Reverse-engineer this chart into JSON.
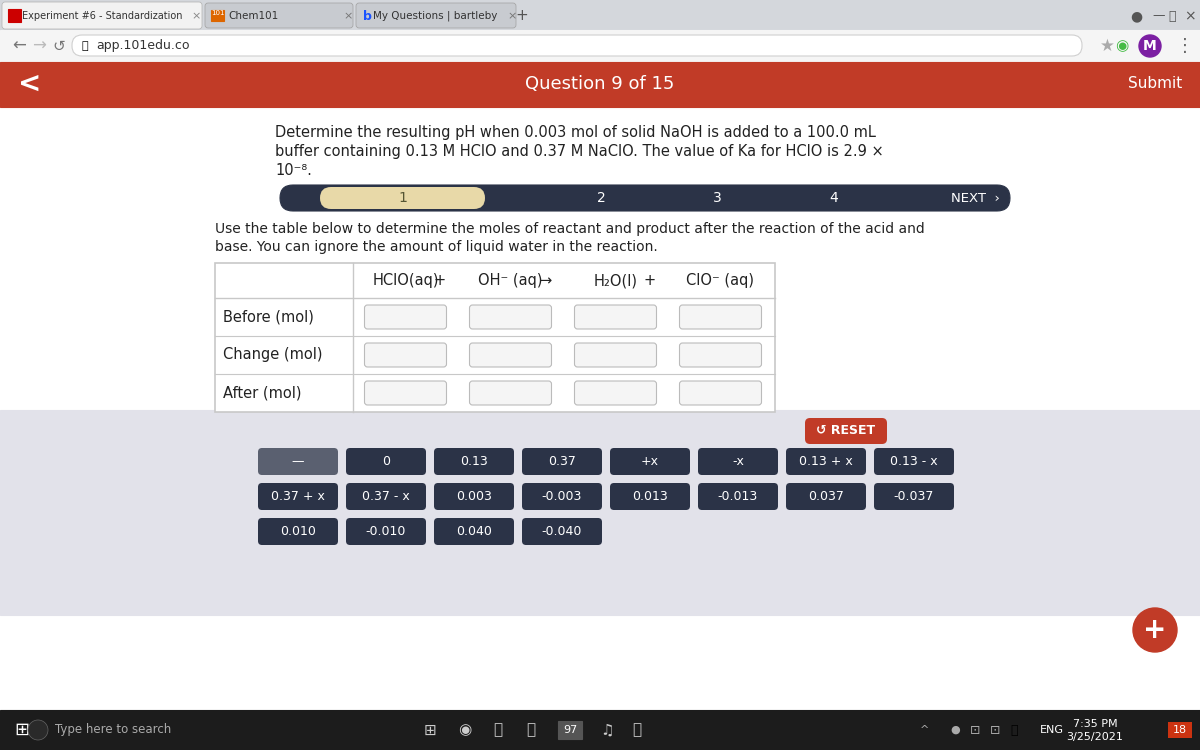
{
  "browser_bg": "#e8e8e8",
  "tab_bar_bg": "#d4d7dc",
  "tab_active_bg": "#f2f2f2",
  "tab_inactive_bg": "#c8cbd0",
  "tab1_text": "Experiment #6 - Standardization",
  "tab2_text": "Chem101",
  "tab3_text": "My Questions | bartleby",
  "address_bar_text": "app.101edu.co",
  "header_bg": "#c13b27",
  "header_text": "Question 9 of 15",
  "header_text_color": "#ffffff",
  "submit_text": "Submit",
  "nav_left": "<",
  "question_text_line1": "Determine the resulting pH when 0.003 mol of solid NaOH is added to a 100.0 mL",
  "question_text_line2": "buffer containing 0.13 M HClO and 0.37 M NaClO. The value of Ka for HClO is 2.9 ×",
  "question_text_line3": "10⁻⁸.",
  "progress_bg": "#2b3347",
  "progress_active_color": "#e8d9a8",
  "next_text": "NEXT",
  "instruction_line1": "Use the table below to determine the moles of reactant and product after the reaction of the acid and",
  "instruction_line2": "base. You can ignore the amount of liquid water in the reaction.",
  "table_bg": "#ffffff",
  "table_border": "#c8c8c8",
  "input_box_bg": "#f5f5f5",
  "input_box_border": "#bbbbbb",
  "button_area_bg": "#e2e2ea",
  "reset_btn_bg": "#c13b27",
  "reset_btn_text": "RESET",
  "reset_btn_text_color": "#ffffff",
  "dark_btn_bg": "#2b3347",
  "dark_btn_text_color": "#ffffff",
  "gray_btn_bg": "#5a6070",
  "buttons_row1": [
    "—",
    "0",
    "0.13",
    "0.37",
    "+x",
    "-x",
    "0.13 + x",
    "0.13 - x"
  ],
  "buttons_row2": [
    "0.37 + x",
    "0.37 - x",
    "0.003",
    "-0.003",
    "0.013",
    "-0.013",
    "0.037",
    "-0.037"
  ],
  "buttons_row3": [
    "0.010",
    "-0.010",
    "0.040",
    "-0.040"
  ],
  "taskbar_bg": "#1c1c1c",
  "taskbar_text_color": "#ffffff",
  "time_text": "7:35 PM",
  "date_text": "3/25/2021",
  "content_bg": "#ffffff",
  "plus_btn_bg": "#c13b27",
  "plus_btn_color": "#ffffff"
}
